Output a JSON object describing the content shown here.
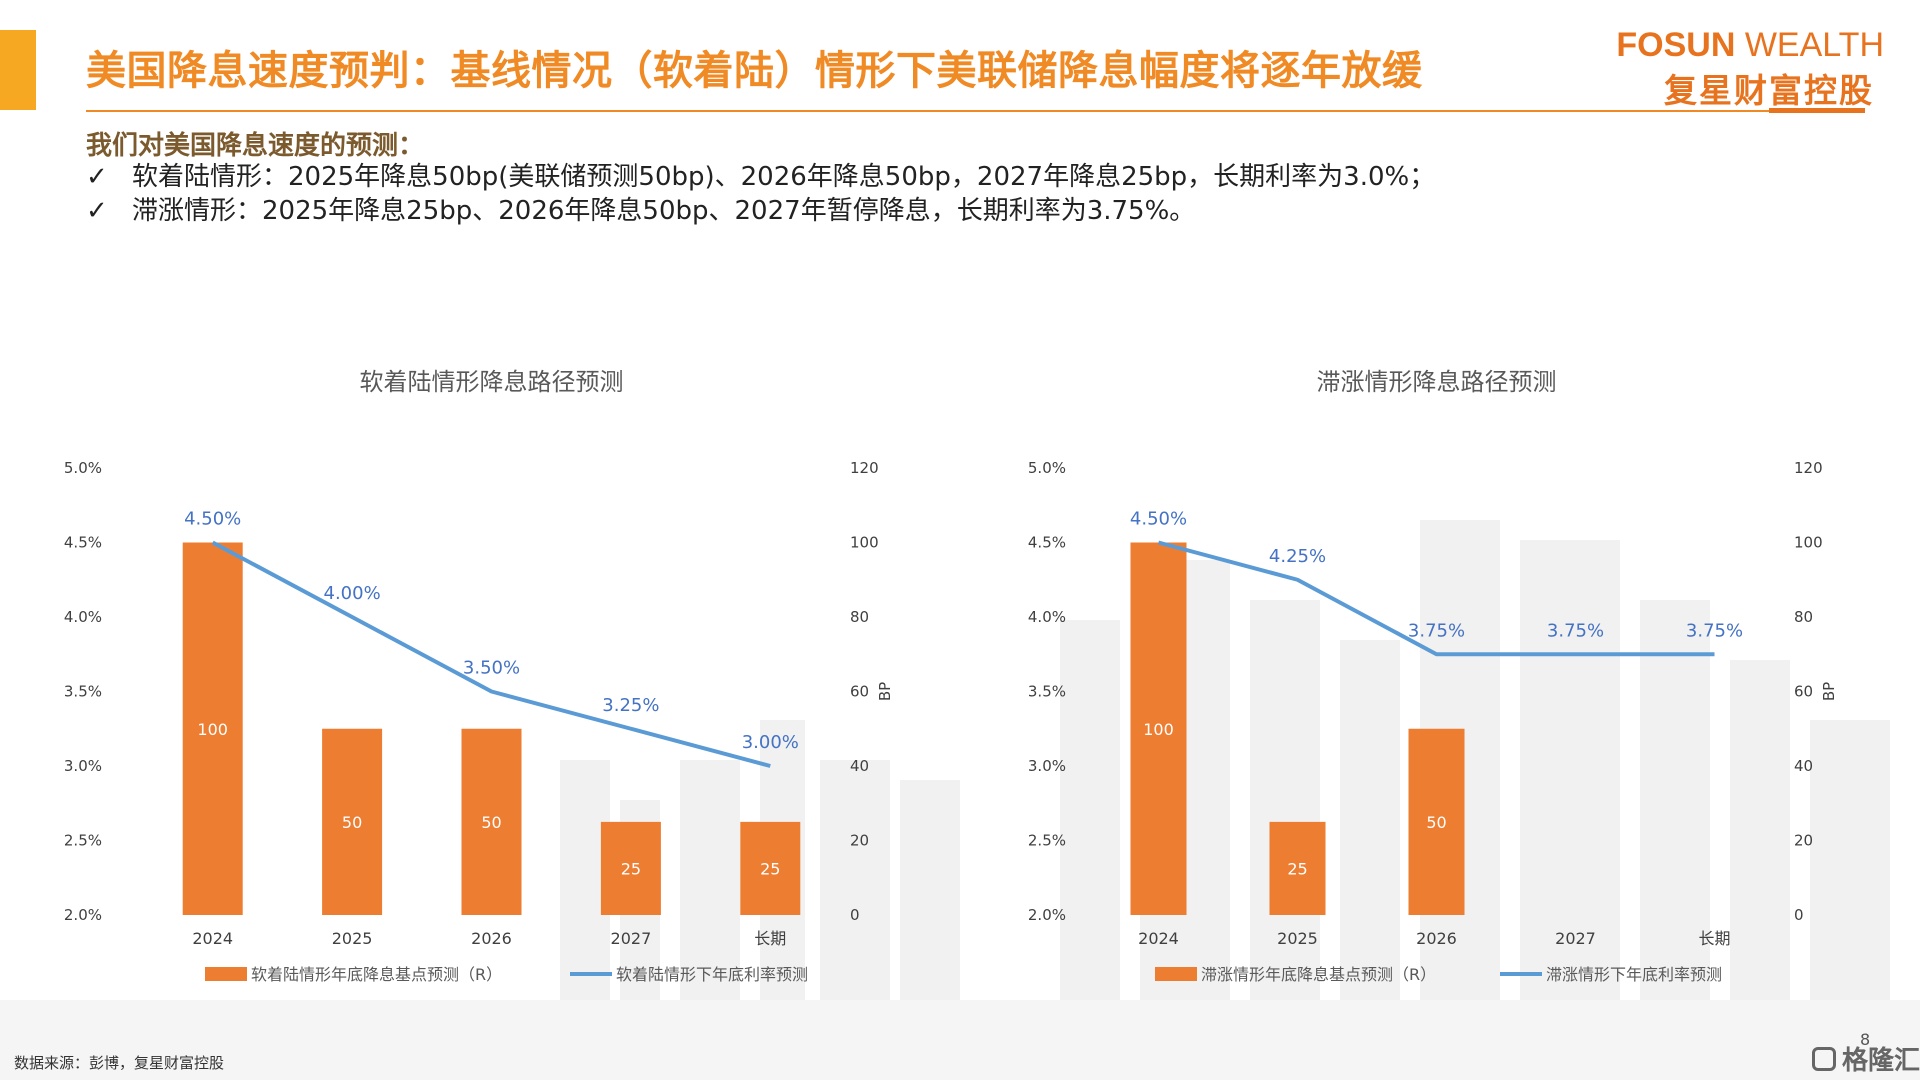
{
  "header": {
    "title": "美国降息速度预判：基线情况（软着陆）情形下美联储降息幅度将逐年放缓",
    "logo_en_bold": "FOSUN",
    "logo_en_light": " WEALTH",
    "logo_cn": "复星财富控股"
  },
  "intro": {
    "heading": "我们对美国降息速度的预测：",
    "tick": "✓",
    "bullets": [
      "软着陆情形：2025年降息50bp(美联储预测50bp)、2026年降息50bp，2027年降息25bp，长期利率为3.0%；",
      "滞涨情形：2025年降息25bp、2026年降息50bp、2027年暂停降息，长期利率为3.75%。"
    ]
  },
  "colors": {
    "accent": "#F7A823",
    "title": "#F08A24",
    "bar": "#ED7D31",
    "line": "#5B9BD5",
    "line_label": "#4472C4"
  },
  "chart_data": [
    {
      "type": "bar",
      "title": "软着陆情形降息路径预测",
      "categories": [
        "2024",
        "2025",
        "2026",
        "2027",
        "长期"
      ],
      "series": [
        {
          "name": "软着陆情形年底降息基点预测（R）",
          "type": "bar",
          "axis": "right",
          "values": [
            100,
            50,
            50,
            25,
            25
          ],
          "labels": [
            "100",
            "50",
            "50",
            "25",
            "25"
          ]
        },
        {
          "name": "软着陆情形下年底利率预测",
          "type": "line",
          "axis": "left",
          "values": [
            4.5,
            4.0,
            3.5,
            3.25,
            3.0
          ],
          "labels": [
            "4.50%",
            "4.00%",
            "3.50%",
            "3.25%",
            "3.00%"
          ]
        }
      ],
      "y_left": {
        "min": 2.0,
        "max": 5.0,
        "ticks": [
          "2.0%",
          "2.5%",
          "3.0%",
          "3.5%",
          "4.0%",
          "4.5%",
          "5.0%"
        ]
      },
      "y_right": {
        "min": 0,
        "max": 120,
        "ticks": [
          "0",
          "20",
          "40",
          "60",
          "80",
          "100",
          "120"
        ],
        "label": "BP"
      },
      "legend": "bottom"
    },
    {
      "type": "bar",
      "title": "滞涨情形降息路径预测",
      "categories": [
        "2024",
        "2025",
        "2026",
        "2027",
        "长期"
      ],
      "series": [
        {
          "name": "滞涨情形年底降息基点预测（R）",
          "type": "bar",
          "axis": "right",
          "values": [
            100,
            25,
            50,
            0,
            0
          ],
          "labels": [
            "100",
            "25",
            "50",
            "",
            ""
          ]
        },
        {
          "name": "滞涨情形下年底利率预测",
          "type": "line",
          "axis": "left",
          "values": [
            4.5,
            4.25,
            3.75,
            3.75,
            3.75
          ],
          "labels": [
            "4.50%",
            "4.25%",
            "3.75%",
            "3.75%",
            "3.75%"
          ]
        }
      ],
      "y_left": {
        "min": 2.0,
        "max": 5.0,
        "ticks": [
          "2.0%",
          "2.5%",
          "3.0%",
          "3.5%",
          "4.0%",
          "4.5%",
          "5.0%"
        ]
      },
      "y_right": {
        "min": 0,
        "max": 120,
        "ticks": [
          "0",
          "20",
          "40",
          "60",
          "80",
          "100",
          "120"
        ],
        "label": "BP"
      },
      "legend": "bottom"
    }
  ],
  "footer": {
    "source": "数据来源：彭博，复星财富控股",
    "page_number": "8",
    "watermark": "格隆汇"
  }
}
